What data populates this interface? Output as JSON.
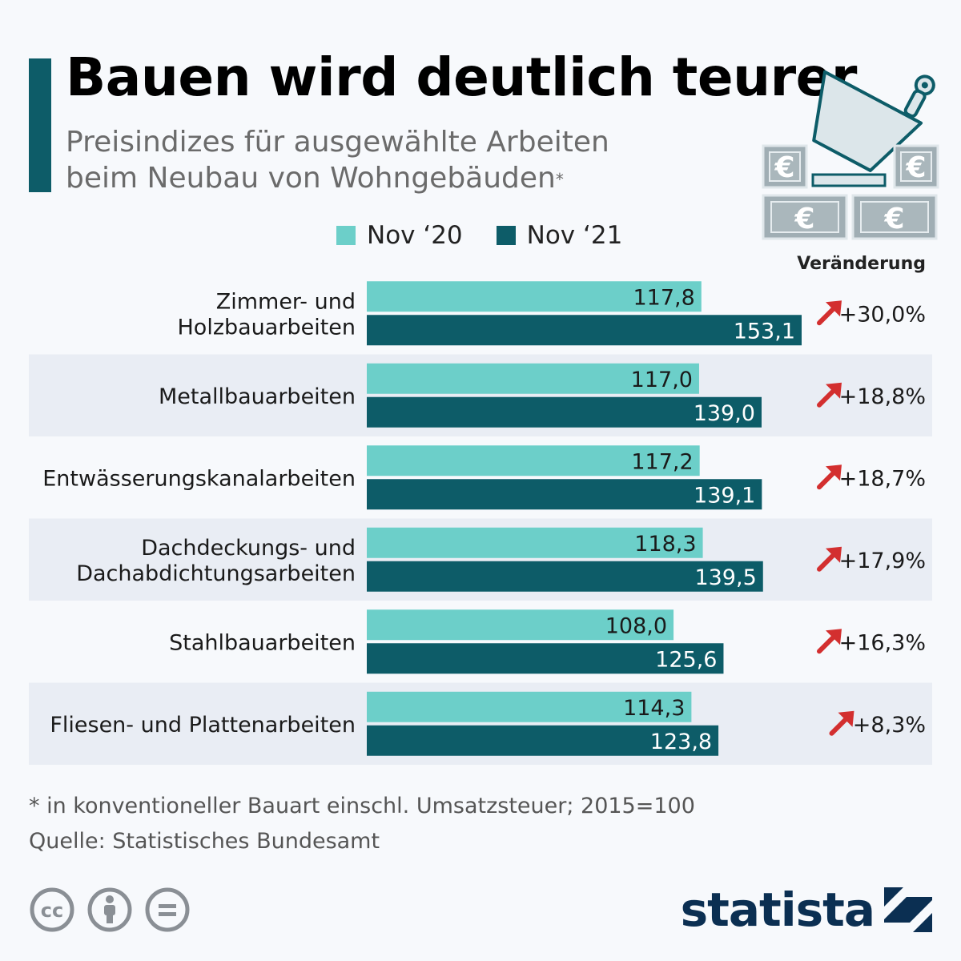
{
  "title": "Bauen wird deutlich teurer",
  "subtitle_line1": "Preisindizes für ausgewählte Arbeiten",
  "subtitle_line2": "beim Neubau von Wohngebäuden",
  "subtitle_mark": "*",
  "change_header": "Veränderung",
  "footnote": "* in konventioneller Bauart einschl. Umsatzsteuer; 2015=100",
  "source": "Quelle: Statistisches Bundesamt",
  "brand": "statista",
  "colors": {
    "nov20": "#6ccfc9",
    "nov21": "#0d5c68",
    "arrow": "#d32f2f",
    "band": "#e9edf4",
    "accent": "#0d5c68"
  },
  "chart_data": {
    "type": "bar",
    "orientation": "horizontal",
    "categories": [
      [
        "Zimmer- und",
        "Holzbauarbeiten"
      ],
      [
        "Metallbauarbeiten"
      ],
      [
        "Entwässerungskanalarbeiten"
      ],
      [
        "Dachdeckungs- und",
        "Dachabdichtungsarbeiten"
      ],
      [
        "Stahlbauarbeiten"
      ],
      [
        "Fliesen- und Plattenarbeiten"
      ]
    ],
    "series": [
      {
        "name": "Nov ‘20",
        "values": [
          117.8,
          117.0,
          117.2,
          118.3,
          108.0,
          114.3
        ],
        "labels": [
          "117,8",
          "117,0",
          "117,2",
          "118,3",
          "108,0",
          "114,3"
        ]
      },
      {
        "name": "Nov ‘21",
        "values": [
          153.1,
          139.0,
          139.1,
          139.5,
          125.6,
          123.8
        ],
        "labels": [
          "153,1",
          "139,0",
          "139,1",
          "139,5",
          "125,6",
          "123,8"
        ]
      }
    ],
    "changes": [
      "+30,0%",
      "+18,8%",
      "+18,7%",
      "+17,9%",
      "+16,3%",
      "+8,3%"
    ],
    "xlim": [
      0,
      153.1
    ],
    "legend": "top",
    "grid": false
  }
}
